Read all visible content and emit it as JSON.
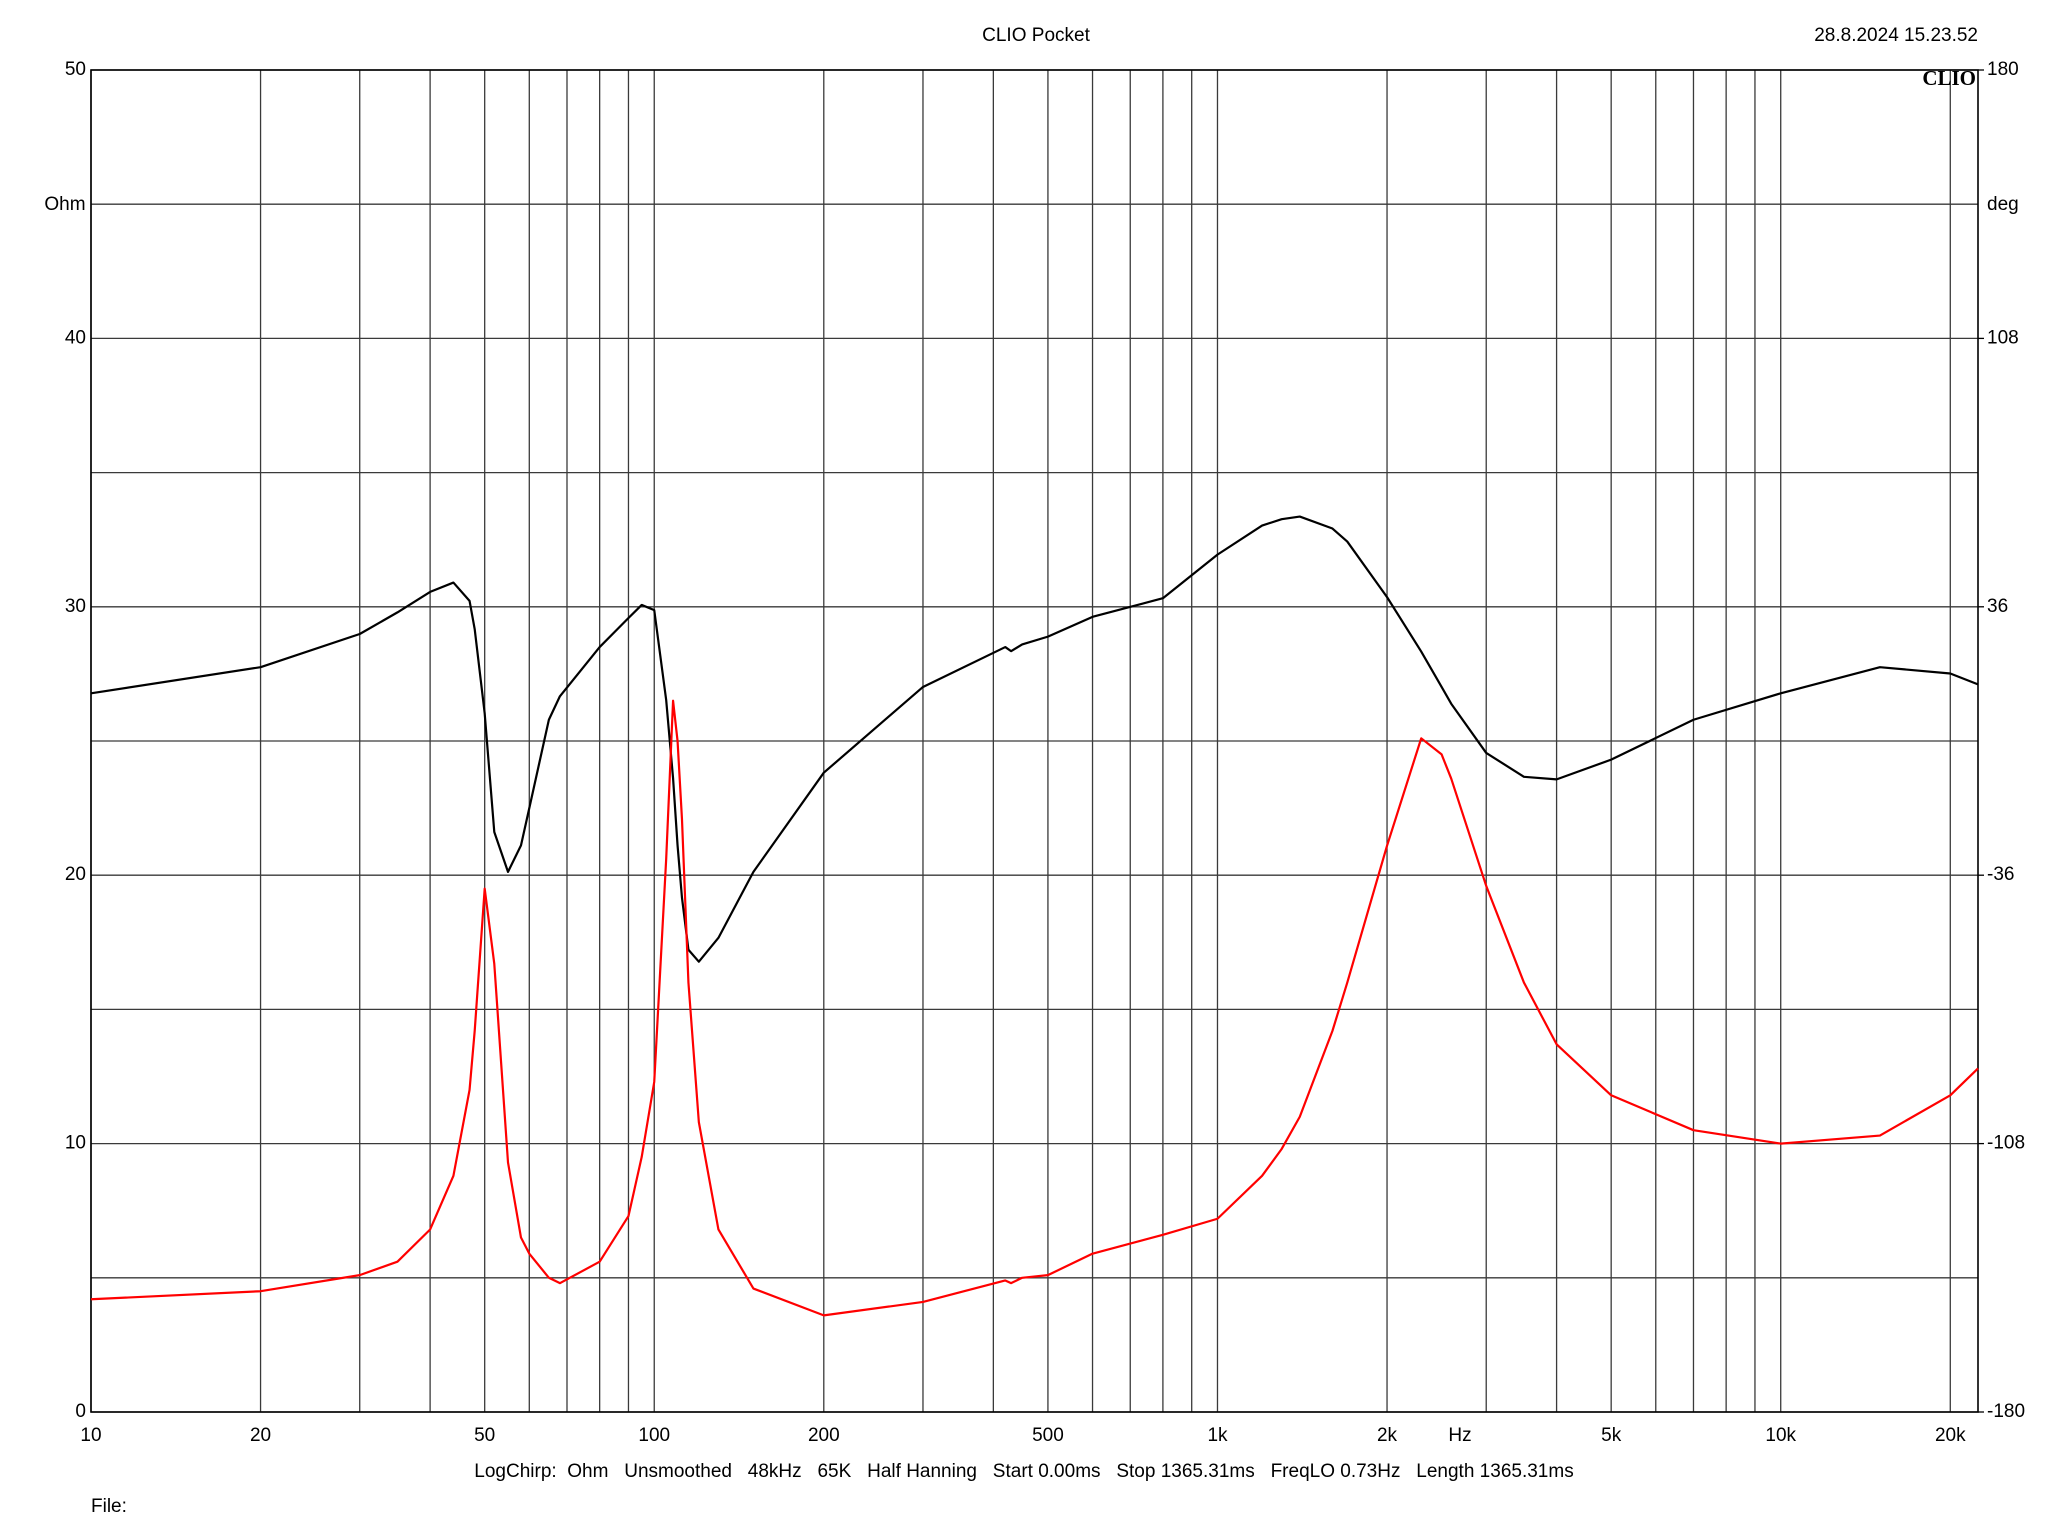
{
  "chart_data": {
    "type": "line",
    "title": "CLIO Pocket",
    "timestamp": "28.8.2024 15.23.52",
    "logo": "CLIO",
    "y_unit": "Ohm",
    "y2_unit": "deg",
    "x_unit": "Hz",
    "footer": "LogChirp:  Ohm   Unsmoothed   48kHz   65K   Half Hanning   Start 0.00ms   Stop 1365.31ms   FreqLO 0.73Hz   Length 1365.31ms",
    "file_label": "File:",
    "xlog": true,
    "grid": true,
    "xlim": [
      10,
      22400
    ],
    "xticks": [
      10,
      20,
      50,
      100,
      200,
      500,
      {
        "value": 1000,
        "label": "1k"
      },
      {
        "value": 2000,
        "label": "2k"
      },
      {
        "value": 5000,
        "label": "5k"
      },
      {
        "value": 10000,
        "label": "10k"
      },
      {
        "value": 20000,
        "label": "20k"
      }
    ],
    "xminorticks": [
      30,
      40,
      60,
      70,
      80,
      90,
      300,
      400,
      600,
      700,
      800,
      900,
      3000,
      4000,
      6000,
      7000,
      8000,
      9000
    ],
    "ylim": [
      0,
      50
    ],
    "yticks": [
      0,
      10,
      20,
      30,
      40,
      50
    ],
    "yminorticks": [
      5,
      15,
      25,
      35,
      45
    ],
    "y2lim": [
      -180,
      180
    ],
    "y2ticks": [
      -180,
      -108,
      -36,
      36,
      108,
      180
    ],
    "x": [
      10,
      20,
      30,
      35,
      40,
      44,
      47,
      48,
      50,
      52,
      55,
      58,
      60,
      65,
      68,
      80,
      90,
      95,
      100,
      105,
      108,
      110,
      112,
      115,
      120,
      130,
      150,
      200,
      300,
      420,
      430,
      450,
      500,
      600,
      800,
      1000,
      1200,
      1300,
      1400,
      1600,
      1700,
      2000,
      2300,
      2500,
      2600,
      3000,
      3500,
      4000,
      5000,
      7000,
      10000,
      15000,
      20000,
      22400
    ],
    "series": [
      {
        "color": "#000000",
        "axis": "y2",
        "values": [
          12.8,
          19.8,
          28.7,
          34.5,
          40.0,
          42.5,
          37.6,
          30,
          7.4,
          -24.4,
          -35.1,
          -28,
          -18,
          5.7,
          12,
          25.2,
          33,
          36.5,
          35.1,
          11.0,
          -10,
          -28,
          -42,
          -56,
          -59.2,
          -52.8,
          -35.1,
          -8.5,
          14.5,
          25.2,
          24.1,
          25.9,
          28,
          33.3,
          38.3,
          50,
          57.8,
          59.5,
          60.2,
          57,
          53.5,
          38.6,
          24,
          14.5,
          10,
          -3.2,
          -9.6,
          -10.3,
          -5,
          5.7,
          12.8,
          19.8,
          18.1,
          15.2
        ]
      },
      {
        "color": "#ff0000",
        "axis": "y",
        "values": [
          4.2,
          4.5,
          5.1,
          5.6,
          6.8,
          8.8,
          12,
          14.2,
          19.5,
          16.7,
          9.3,
          6.5,
          5.9,
          5.0,
          4.8,
          5.6,
          7.3,
          9.5,
          12.3,
          20.6,
          26.5,
          25,
          22.1,
          16,
          10.8,
          6.8,
          4.6,
          3.6,
          4.1,
          4.9,
          4.8,
          5.0,
          5.1,
          5.9,
          6.6,
          7.2,
          8.8,
          9.8,
          11,
          14.2,
          16,
          21.1,
          25.1,
          24.5,
          23.6,
          19.6,
          16,
          13.7,
          11.8,
          10.5,
          10.0,
          10.3,
          11.8,
          12.8
        ]
      }
    ]
  }
}
